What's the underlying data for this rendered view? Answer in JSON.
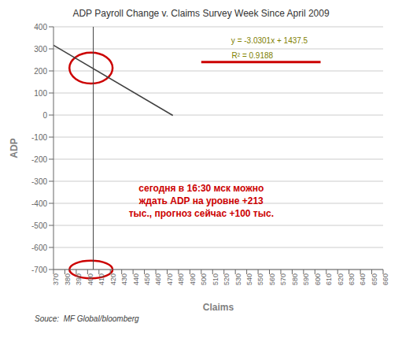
{
  "chart_data": {
    "type": "line",
    "title": "ADP Payroll Change v. Claims Survey Week Since April 2009",
    "x_label": "Claims",
    "y_label": "ADP",
    "xlim": [
      370,
      660
    ],
    "ylim": [
      -700,
      400
    ],
    "xticks": [
      370,
      380,
      390,
      400,
      410,
      420,
      430,
      440,
      450,
      460,
      470,
      480,
      490,
      500,
      510,
      520,
      530,
      540,
      550,
      560,
      570,
      580,
      590,
      600,
      610,
      620,
      630,
      640,
      650,
      660
    ],
    "yticks": [
      -700,
      -600,
      -500,
      -400,
      -300,
      -200,
      -100,
      0,
      100,
      200,
      300,
      400
    ],
    "grid": "y",
    "x": [
      370,
      475
    ],
    "values": [
      316.363,
      -1.7975
    ],
    "color": "#404040",
    "vertical_lines": [
      {
        "x": 405,
        "color": "#404040"
      }
    ],
    "ellipses": [
      {
        "x": 403,
        "y": 213,
        "width": 38,
        "height": 140,
        "color": "#cc0000"
      },
      {
        "x": 403,
        "y": -700,
        "width": 38,
        "height": 80,
        "color": "#cc0000"
      }
    ],
    "segments": [
      {
        "x": [
          500,
          605
        ],
        "y": [
          240,
          240
        ],
        "color": "#cc0000"
      }
    ],
    "annotations": [
      {
        "text": "y = -3.0301x + 1437.5",
        "x": 560,
        "y": 340,
        "color": "#808000"
      },
      {
        "text": "R² = 0.9188",
        "x": 545,
        "y": 270,
        "color": "#808000"
      },
      {
        "text": "сегодня в 16:30 мск можно\nждать ADP на уровне +213\nтыс., прогноз сейчас +100 тыс.",
        "x": 500,
        "y": -390,
        "color": "#cc0000"
      }
    ],
    "source": "Souce:  MF Global/bloomberg"
  }
}
